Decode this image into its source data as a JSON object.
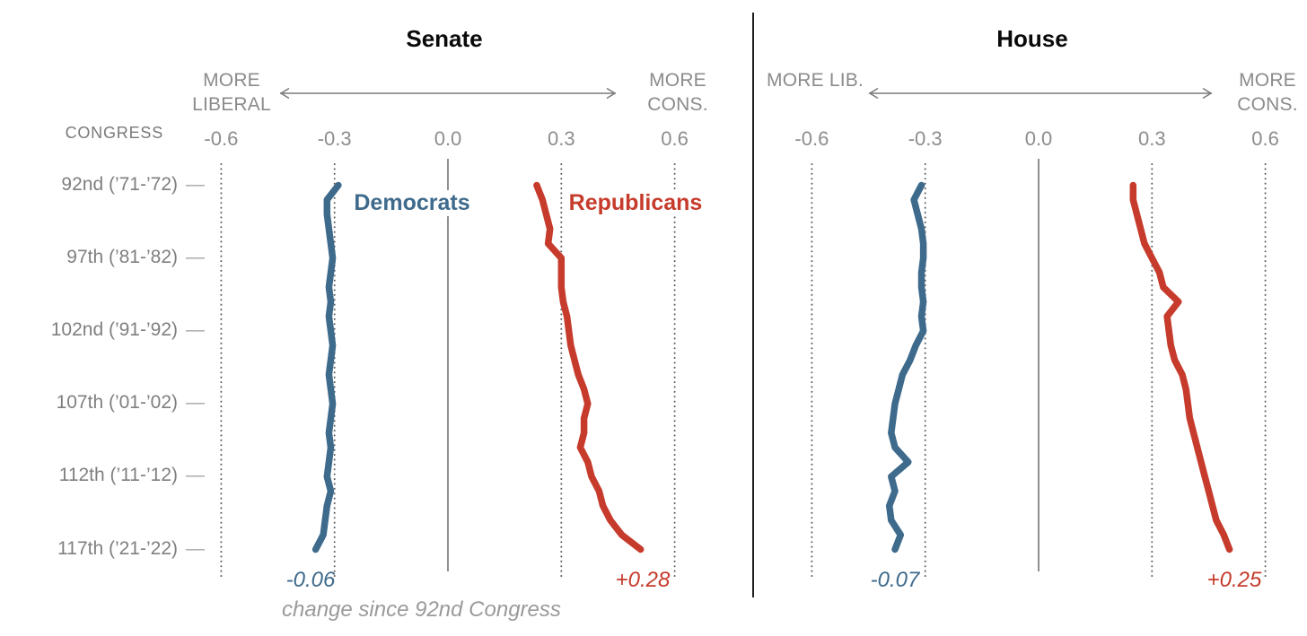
{
  "y_axis": {
    "label": "CONGRESS",
    "dash": "—",
    "rows": [
      {
        "congress": 92,
        "label": "92nd (’71-’72)"
      },
      {
        "congress": 97,
        "label": "97th (’81-’82)"
      },
      {
        "congress": 102,
        "label": "102nd (’91-’92)"
      },
      {
        "congress": 107,
        "label": "107th (’01-’02)"
      },
      {
        "congress": 112,
        "label": "112th (’11-’12)"
      },
      {
        "congress": 117,
        "label": "117th (’21-’22)"
      }
    ]
  },
  "chart_data": [
    {
      "type": "line",
      "title": "Senate",
      "axis_label_left": "MORE LIBERAL",
      "axis_label_right": "MORE CONS.",
      "xlabel_ticks": [
        "-0.6",
        "-0.3",
        "0.0",
        "0.3",
        "0.6"
      ],
      "xlim": [
        -0.75,
        0.75
      ],
      "x_congress": [
        92,
        93,
        94,
        95,
        96,
        97,
        98,
        99,
        100,
        101,
        102,
        103,
        104,
        105,
        106,
        107,
        108,
        109,
        110,
        111,
        112,
        113,
        114,
        115,
        116,
        117
      ],
      "series": [
        {
          "name": "Democrats",
          "label": "Democrats",
          "color": "#3e6a8c",
          "end_annotation": "-0.06",
          "values": [
            -0.29,
            -0.32,
            -0.32,
            -0.315,
            -0.31,
            -0.305,
            -0.31,
            -0.315,
            -0.31,
            -0.315,
            -0.31,
            -0.305,
            -0.31,
            -0.315,
            -0.31,
            -0.305,
            -0.31,
            -0.315,
            -0.31,
            -0.315,
            -0.32,
            -0.31,
            -0.32,
            -0.325,
            -0.33,
            -0.35
          ]
        },
        {
          "name": "Republicans",
          "label": "Republicans",
          "color": "#c63b2b",
          "end_annotation": "+0.28",
          "values": [
            0.235,
            0.25,
            0.26,
            0.27,
            0.265,
            0.3,
            0.3,
            0.3,
            0.305,
            0.315,
            0.32,
            0.325,
            0.335,
            0.345,
            0.36,
            0.37,
            0.36,
            0.36,
            0.35,
            0.37,
            0.38,
            0.4,
            0.41,
            0.43,
            0.46,
            0.51
          ]
        }
      ],
      "footnote": "change since 92nd Congress"
    },
    {
      "type": "line",
      "title": "House",
      "axis_label_left": "MORE LIB.",
      "axis_label_right": "MORE CONS.",
      "xlabel_ticks": [
        "-0.6",
        "-0.3",
        "0.0",
        "0.3",
        "0.6"
      ],
      "xlim": [
        -0.75,
        0.75
      ],
      "x_congress": [
        92,
        93,
        94,
        95,
        96,
        97,
        98,
        99,
        100,
        101,
        102,
        103,
        104,
        105,
        106,
        107,
        108,
        109,
        110,
        111,
        112,
        113,
        114,
        115,
        116,
        117
      ],
      "series": [
        {
          "name": "Democrats",
          "color": "#3e6a8c",
          "end_annotation": "-0.07",
          "values": [
            -0.31,
            -0.33,
            -0.32,
            -0.31,
            -0.305,
            -0.305,
            -0.31,
            -0.31,
            -0.305,
            -0.31,
            -0.305,
            -0.325,
            -0.34,
            -0.36,
            -0.37,
            -0.38,
            -0.385,
            -0.39,
            -0.38,
            -0.345,
            -0.39,
            -0.38,
            -0.395,
            -0.39,
            -0.365,
            -0.38
          ]
        },
        {
          "name": "Republicans",
          "color": "#c63b2b",
          "end_annotation": "+0.25",
          "values": [
            0.25,
            0.25,
            0.26,
            0.27,
            0.28,
            0.3,
            0.32,
            0.33,
            0.37,
            0.34,
            0.345,
            0.35,
            0.36,
            0.38,
            0.39,
            0.395,
            0.4,
            0.41,
            0.42,
            0.43,
            0.44,
            0.45,
            0.46,
            0.47,
            0.49,
            0.505
          ]
        }
      ]
    }
  ]
}
